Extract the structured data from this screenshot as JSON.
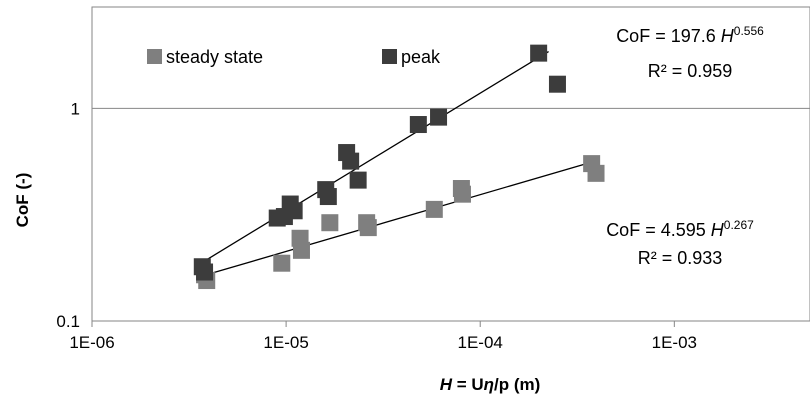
{
  "chart_data": {
    "type": "scatter",
    "x_scale": "log",
    "y_scale": "log",
    "xlim": [
      1e-06,
      0.005
    ],
    "ylim": [
      0.1,
      3
    ],
    "grid": "horizontal",
    "legend_position": "top-left",
    "title": "",
    "xlabel": {
      "var": "H",
      "eq": " = U",
      "eta": "η",
      "rest": "/p (m)"
    },
    "ylabel": "CoF (-)",
    "x_ticks": [
      {
        "value": 1e-06,
        "label": "1E-06"
      },
      {
        "value": 1e-05,
        "label": "1E-05"
      },
      {
        "value": 0.0001,
        "label": "1E-04"
      },
      {
        "value": 0.001,
        "label": "1E-03"
      }
    ],
    "y_ticks": [
      {
        "value": 0.1,
        "label": "0.1"
      },
      {
        "value": 1,
        "label": "1"
      }
    ],
    "series": [
      {
        "name": "steady state",
        "color": "#7f7f7f",
        "marker": "square",
        "x": [
          3.8e-06,
          3.9e-06,
          9.5e-06,
          1.18e-05,
          1.2e-05,
          1.68e-05,
          2.6e-05,
          2.65e-05,
          5.8e-05,
          8e-05,
          8.1e-05,
          0.000375,
          0.000395
        ],
        "y": [
          0.165,
          0.155,
          0.187,
          0.245,
          0.215,
          0.29,
          0.29,
          0.275,
          0.335,
          0.42,
          0.395,
          0.55,
          0.495
        ],
        "fit": {
          "x_range": [
            3.8e-06,
            0.000385
          ],
          "coef": 4.595,
          "exp": 0.267,
          "r2_text": "R² = 0.933",
          "label_prefix": "CoF = 4.595 ",
          "label_var": "H",
          "label_exp": "0.267"
        }
      },
      {
        "name": "peak",
        "color": "#3c3c3c",
        "marker": "square",
        "x": [
          3.7e-06,
          3.8e-06,
          9e-06,
          9.8e-06,
          1.05e-05,
          1.1e-05,
          1.6e-05,
          1.65e-05,
          2.05e-05,
          2.15e-05,
          2.35e-05,
          4.8e-05,
          6.1e-05,
          0.0002,
          0.00025
        ],
        "y": [
          0.18,
          0.17,
          0.305,
          0.31,
          0.355,
          0.33,
          0.415,
          0.385,
          0.62,
          0.565,
          0.46,
          0.84,
          0.91,
          1.82,
          1.3
        ],
        "fit": {
          "x_range": [
            3.7e-06,
            0.000225
          ],
          "coef": 197.6,
          "exp": 0.556,
          "r2_text": "R² = 0.959",
          "label_prefix": "CoF = 197.6 ",
          "label_var": "H",
          "label_exp": "0.556"
        }
      }
    ]
  }
}
